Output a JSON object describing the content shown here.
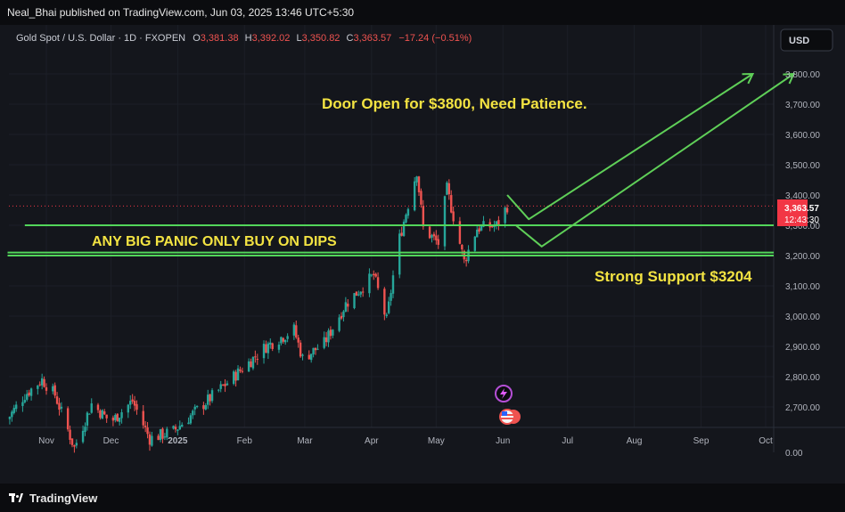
{
  "publisher_line": "Neal_Bhai published on TradingView.com, Jun 03, 2025 13:46 UTC+5:30",
  "footer": {
    "brand": "TradingView"
  },
  "currency_button": "USD",
  "legend": {
    "symbol": "Gold Spot / U.S. Dollar · 1D · FXOPEN",
    "open_label": "O",
    "open": "3,381.38",
    "high_label": "H",
    "high": "3,392.02",
    "low_label": "L",
    "low": "3,350.82",
    "close_label": "C",
    "close": "3,363.57",
    "change": "−17.24 (−0.51%)"
  },
  "price_badge": {
    "price": "3,363.57",
    "countdown": "12:43:30"
  },
  "annotations": [
    {
      "text": "Door Open for $3800, Need Patience.",
      "color": "#f3e342"
    },
    {
      "text": "ANY BIG PANIC ONLY BUY ON DIPS",
      "color": "#f3e342"
    },
    {
      "text": "Strong Support $3204",
      "color": "#f3e342"
    }
  ],
  "colors": {
    "up": "#26a69a",
    "down": "#ef5350",
    "line": "#52d65a",
    "arrow": "#5fcf58",
    "text_yellow": "#f3e342",
    "grid": "#1c1f27",
    "badge": "#f23645"
  },
  "chart_data": {
    "type": "candlestick",
    "y_ticks": [
      2700,
      2800,
      2900,
      3000,
      3100,
      3200,
      3300,
      3400,
      3500,
      3600,
      3700,
      3800
    ],
    "y_tick_labels": [
      "2,700.00",
      "2,800.00",
      "2,900.00",
      "3,000.00",
      "3,100.00",
      "3,200.00",
      "3,300.00",
      "3,400.00",
      "3,500.00",
      "3,600.00",
      "3,700.00",
      "3,800.00"
    ],
    "y_zero_label": "0.00",
    "ylim": [
      2630,
      3880
    ],
    "x_labels": [
      {
        "label": "Nov",
        "date": "2024-11-01",
        "bold": false
      },
      {
        "label": "Dec",
        "date": "2024-12-01",
        "bold": false
      },
      {
        "label": "2025",
        "date": "2025-01-01",
        "bold": true
      },
      {
        "label": "Feb",
        "date": "2025-02-01",
        "bold": false
      },
      {
        "label": "Mar",
        "date": "2025-03-01",
        "bold": false
      },
      {
        "label": "Apr",
        "date": "2025-04-01",
        "bold": false
      },
      {
        "label": "May",
        "date": "2025-05-01",
        "bold": false
      },
      {
        "label": "Jun",
        "date": "2025-06-01",
        "bold": false
      },
      {
        "label": "Jul",
        "date": "2025-07-01",
        "bold": false
      },
      {
        "label": "Aug",
        "date": "2025-08-01",
        "bold": false
      },
      {
        "label": "Sep",
        "date": "2025-09-01",
        "bold": false
      },
      {
        "label": "Oct",
        "date": "2025-10-01",
        "bold": false
      }
    ],
    "price_path": [
      [
        "2024-10-14",
        2660
      ],
      [
        "2024-10-22",
        2740
      ],
      [
        "2024-10-30",
        2790
      ],
      [
        "2024-11-05",
        2740
      ],
      [
        "2024-11-14",
        2565
      ],
      [
        "2024-11-22",
        2710
      ],
      [
        "2024-12-01",
        2650
      ],
      [
        "2024-12-11",
        2720
      ],
      [
        "2024-12-19",
        2595
      ],
      [
        "2024-12-30",
        2620
      ],
      [
        "2025-01-10",
        2690
      ],
      [
        "2025-01-24",
        2780
      ],
      [
        "2025-02-11",
        2900
      ],
      [
        "2025-02-24",
        2955
      ],
      [
        "2025-02-28",
        2860
      ],
      [
        "2025-03-10",
        2910
      ],
      [
        "2025-03-20",
        3040
      ],
      [
        "2025-04-02",
        3135
      ],
      [
        "2025-04-08",
        2985
      ],
      [
        "2025-04-13",
        3230
      ],
      [
        "2025-04-22",
        3480
      ],
      [
        "2025-04-25",
        3290
      ],
      [
        "2025-05-02",
        3240
      ],
      [
        "2025-05-06",
        3420
      ],
      [
        "2025-05-14",
        3180
      ],
      [
        "2025-05-20",
        3290
      ],
      [
        "2025-05-29",
        3300
      ],
      [
        "2025-06-03",
        3363.57
      ]
    ],
    "horizontal_lines": [
      {
        "price": 3300,
        "from": "2024-10-22",
        "to_edge": true,
        "width": 2
      },
      {
        "price": 3200,
        "from": "2024-10-14",
        "to_edge": true,
        "width": 2
      },
      {
        "price": 3210,
        "from": "2024-10-14",
        "to_edge": true,
        "width": 2
      }
    ],
    "last_price": 3363.57,
    "projection_path_1": [
      [
        "2025-06-03",
        3400
      ],
      [
        "2025-06-13",
        3320
      ],
      [
        "2025-09-25",
        3800
      ]
    ],
    "projection_path_2": [
      [
        "2025-06-07",
        3300
      ],
      [
        "2025-06-19",
        3230
      ],
      [
        "2025-10-14",
        3800
      ]
    ]
  }
}
